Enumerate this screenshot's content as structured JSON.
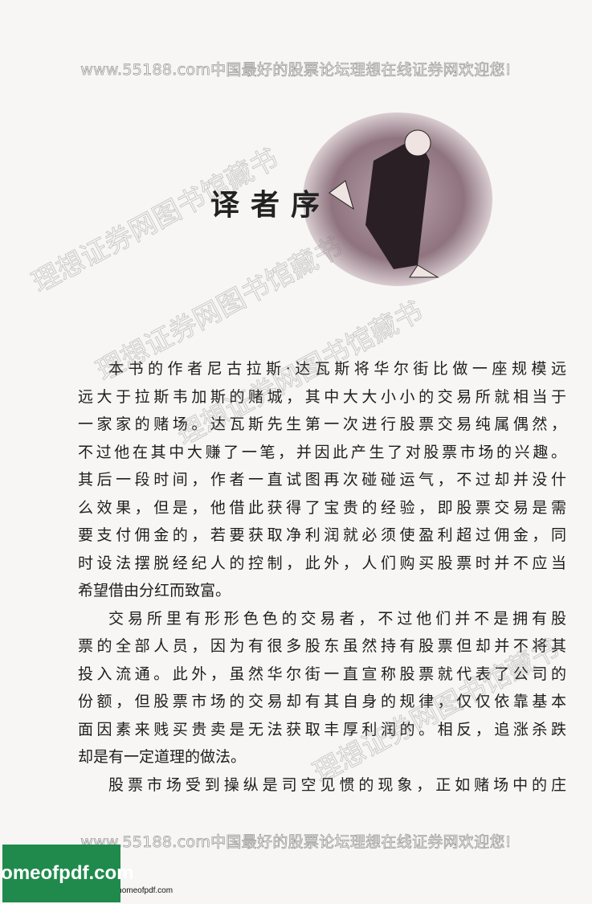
{
  "header": {
    "watermark": "www.55188.com中国最好的股票论坛理想在线证券网欢迎您!"
  },
  "title": "译者序",
  "watermarks": [
    "理想证券网图书馆藏书",
    "理想证券网图书馆藏书",
    "理想证券网图书馆藏书",
    "理想证券网图书馆藏书"
  ],
  "paragraphs": [
    [
      "本书的作者尼古拉斯·达瓦斯将华尔街比做一座规模远",
      "远大于拉斯韦加斯的赌城，其中大大小小的交易所就相当于",
      "一家家的赌场。达瓦斯先生第一次进行股票交易纯属偶然，",
      "不过他在其中大赚了一笔，并因此产生了对股票市场的兴趣。",
      "其后一段时间，作者一直试图再次碰碰运气，不过却并没什",
      "么效果，但是，他借此获得了宝贵的经验，即股票交易是需",
      "要支付佣金的，若要获取净利润就必须使盈利超过佣金，同",
      "时设法摆脱经纪人的控制，此外，人们购买股票时并不应当",
      "希望借由分红而致富。"
    ],
    [
      "交易所里有形形色色的交易者，不过他们并不是拥有股",
      "票的全部人员，因为有很多股东虽然持有股票但却并不将其",
      "投入流通。此外，虽然华尔街一直宣称股票就代表了公司的",
      "份额，但股票市场的交易却有其自身的规律，仅仅依靠基本",
      "面因素来贱买贵卖是无法获取丰厚利润的。相反，追涨杀跌",
      "却是有一定道理的做法。"
    ],
    [
      "股票市场受到操纵是司空见惯的现象，正如赌场中的庄"
    ]
  ],
  "footer": {
    "watermark": "www.55188.com中国最好的股票论坛理想在线证券网欢迎您!",
    "visit": "Please visit: https://homeofpdf.com",
    "badge": "homeofpdf.com"
  }
}
